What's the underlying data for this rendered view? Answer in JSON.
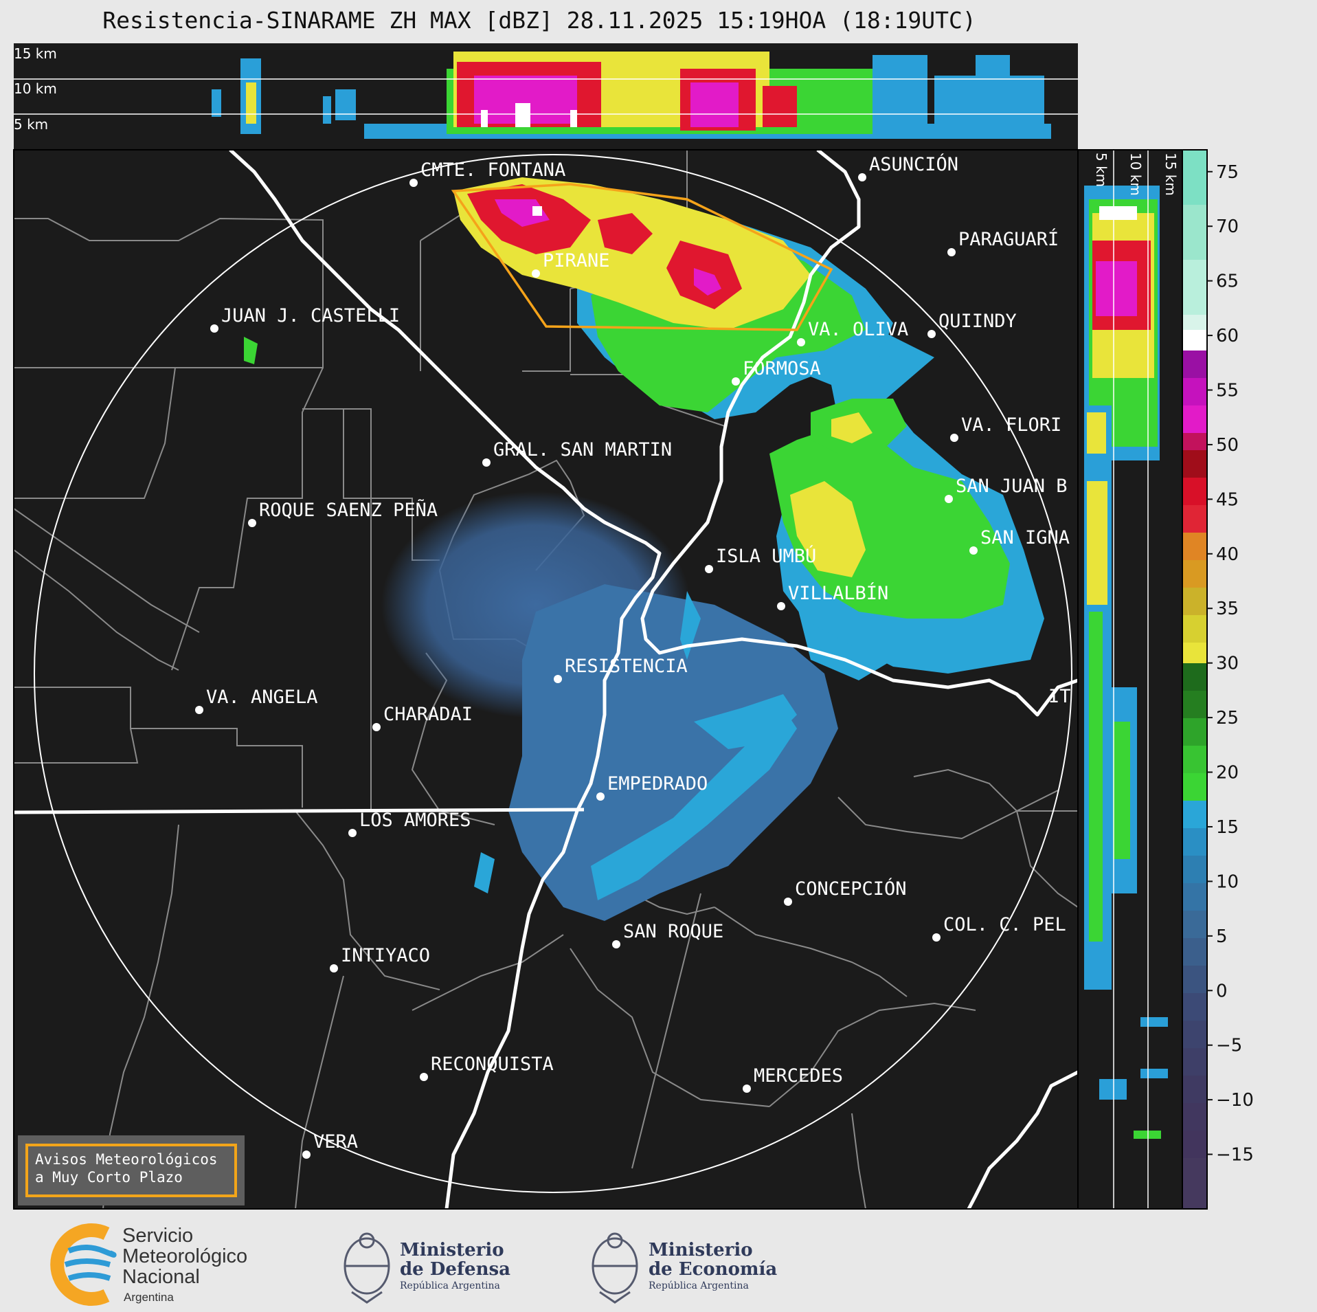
{
  "title": "Resistencia-SINARAME ZH MAX [dBZ] 28.11.2025 15:19HOA (18:19UTC)",
  "altitude_labels": [
    "15 km",
    "10 km",
    "5 km"
  ],
  "side_altitude_labels": [
    "5 km",
    "10 km",
    "15 km"
  ],
  "colorbar": {
    "ticks": [
      75,
      70,
      65,
      60,
      55,
      50,
      45,
      40,
      35,
      30,
      25,
      20,
      15,
      10,
      5,
      0,
      -5,
      -10,
      -15
    ],
    "tick_labels": [
      "75",
      "70",
      "65",
      "60",
      "55",
      "50",
      "45",
      "40",
      "35",
      "30",
      "25",
      "20",
      "15",
      "10",
      "5",
      "0",
      "−5",
      "−10",
      "−15"
    ],
    "min": -20,
    "max": 77,
    "unit": "dBZ"
  },
  "cities": [
    {
      "name": "CMTE. FONTANA"
    },
    {
      "name": "ASUNCIÓN"
    },
    {
      "name": "PARAGUARÍ"
    },
    {
      "name": "PIRANE"
    },
    {
      "name": "JUAN J. CASTELLI"
    },
    {
      "name": "VA. OLIVA"
    },
    {
      "name": "QUIINDY"
    },
    {
      "name": "FORMOSA"
    },
    {
      "name": "VA. FLORI"
    },
    {
      "name": "GRAL. SAN MARTIN"
    },
    {
      "name": "SAN JUAN B"
    },
    {
      "name": "ROQUE SAENZ PEÑA"
    },
    {
      "name": "SAN IGNA"
    },
    {
      "name": "ISLA UMBÚ"
    },
    {
      "name": "VILLALBÍN"
    },
    {
      "name": "RESISTENCIA"
    },
    {
      "name": "VA. ANGELA"
    },
    {
      "name": "CHARADAI"
    },
    {
      "name": "IT"
    },
    {
      "name": "EMPEDRADO"
    },
    {
      "name": "LOS AMORES"
    },
    {
      "name": "CONCEPCIÓN"
    },
    {
      "name": "COL. C. PEL"
    },
    {
      "name": "SAN ROQUE"
    },
    {
      "name": "INTIYACO"
    },
    {
      "name": "RECONQUISTA"
    },
    {
      "name": "MERCEDES"
    },
    {
      "name": "VERA"
    }
  ],
  "warning_box": {
    "line1": "Avisos Meteorológicos",
    "line2": "a Muy Corto Plazo"
  },
  "footer": {
    "smn": {
      "line1": "Servicio",
      "line2": "Meteorológico",
      "line3": "Nacional",
      "line4": "Argentina"
    },
    "defensa": {
      "line1": "Ministerio",
      "line2": "de Defensa",
      "line3": "República Argentina"
    },
    "economia": {
      "line1": "Ministerio",
      "line2": "de Economía",
      "line3": "República Argentina"
    }
  },
  "colors": {
    "map_bg": "#1b1b1b",
    "page_bg": "#e8e8e8",
    "warning_polygon": "#f5a31a",
    "smn_orange": "#f5a623",
    "smn_blue": "#2e9bd6"
  }
}
